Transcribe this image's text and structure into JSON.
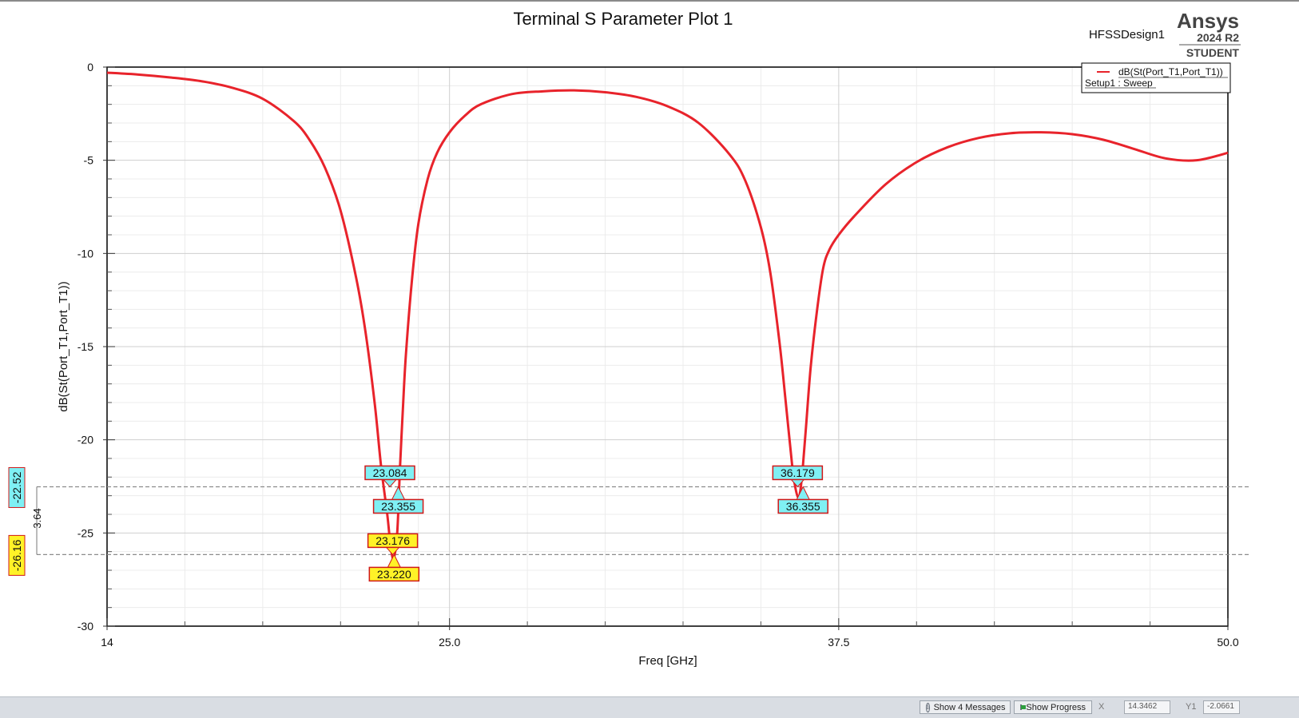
{
  "header": {
    "title": "Terminal S Parameter Plot 1",
    "design_name": "HFSSDesign1",
    "brand": "Ansys",
    "version": "2024 R2",
    "edition": "STUDENT"
  },
  "legend": {
    "trace_label": "dB(St(Port_T1,Port_T1))",
    "setup_label": "Setup1 : Sweep"
  },
  "colors": {
    "trace": "#e8232b",
    "marker_cyan": "#7ff0f4",
    "marker_yellow": "#fff227",
    "marker_border": "#d01818",
    "grid_major": "#cfcfcf",
    "grid_minor": "#ececec"
  },
  "chart_data": {
    "type": "line",
    "title": "Terminal S Parameter Plot 1",
    "xlabel": "Freq [GHz]",
    "ylabel": "dB(St(Port_T1,Port_T1))",
    "xlim": [
      14,
      50
    ],
    "ylim": [
      -30,
      0
    ],
    "x_ticks": [
      14,
      25,
      37.5,
      50
    ],
    "x_tick_labels": [
      "14",
      "25.0",
      "37.5",
      "50.0"
    ],
    "y_ticks": [
      0,
      -5,
      -10,
      -15,
      -20,
      -25,
      -30
    ],
    "y_tick_labels": [
      "0",
      "-5",
      "-10",
      "-15",
      "-20",
      "-25",
      "-30"
    ],
    "grid": true,
    "legend_position": "top-right",
    "series": [
      {
        "name": "dB(St(Port_T1,Port_T1))",
        "x": [
          14,
          15,
          16,
          17,
          18,
          19,
          20,
          20.5,
          21,
          21.5,
          22,
          22.3,
          22.6,
          22.8,
          23,
          23.1,
          23.2,
          23.3,
          23.35,
          23.4,
          23.5,
          23.6,
          23.8,
          24,
          24.3,
          24.6,
          25,
          25.5,
          26,
          27,
          28,
          29,
          30,
          31,
          32,
          33,
          34,
          34.5,
          35,
          35.3,
          35.6,
          35.8,
          36,
          36.1,
          36.2,
          36.27,
          36.35,
          36.45,
          36.6,
          36.8,
          37,
          37.2,
          37.5,
          38,
          39,
          40,
          41,
          42,
          43,
          44,
          45,
          46,
          47,
          48,
          49,
          50
        ],
        "y": [
          -0.3,
          -0.4,
          -0.55,
          -0.75,
          -1.1,
          -1.7,
          -2.9,
          -3.9,
          -5.4,
          -7.7,
          -11.3,
          -14.2,
          -18.1,
          -21.4,
          -24.0,
          -25.6,
          -26.4,
          -25.4,
          -24.0,
          -21.8,
          -18.4,
          -15.4,
          -11.3,
          -8.4,
          -6.0,
          -4.6,
          -3.5,
          -2.6,
          -2.0,
          -1.45,
          -1.3,
          -1.25,
          -1.35,
          -1.6,
          -2.1,
          -3.0,
          -4.7,
          -6.1,
          -8.6,
          -11.0,
          -14.8,
          -18.0,
          -21.3,
          -22.5,
          -23.1,
          -22.7,
          -21.4,
          -19.3,
          -16.1,
          -13.1,
          -10.8,
          -9.8,
          -9.0,
          -8.0,
          -6.3,
          -5.1,
          -4.3,
          -3.8,
          -3.55,
          -3.5,
          -3.6,
          -3.9,
          -4.4,
          -4.9,
          -5.0,
          -4.6
        ]
      }
    ],
    "markers": [
      {
        "label": "23.084",
        "x": 23.084,
        "y": -22.52,
        "color": "cyan",
        "side": "above"
      },
      {
        "label": "23.355",
        "x": 23.355,
        "y": -22.52,
        "color": "cyan",
        "side": "below"
      },
      {
        "label": "23.176",
        "x": 23.176,
        "y": -26.16,
        "color": "yellow",
        "side": "above"
      },
      {
        "label": "23.220",
        "x": 23.22,
        "y": -26.16,
        "color": "yellow",
        "side": "below"
      },
      {
        "label": "36.179",
        "x": 36.179,
        "y": -22.52,
        "color": "cyan",
        "side": "above"
      },
      {
        "label": "36.355",
        "x": 36.355,
        "y": -22.52,
        "color": "cyan",
        "side": "below"
      }
    ],
    "y_cursors": [
      {
        "label": "-22.52",
        "y": -22.52,
        "color": "cyan"
      },
      {
        "label": "-26.16",
        "y": -26.16,
        "color": "yellow"
      }
    ],
    "cursor_delta_label": "3.64"
  },
  "status_bar": {
    "messages_label": "Show 4 Messages",
    "progress_label": "Show Progress",
    "x_label": "X",
    "x_value": "14.3462",
    "y_label": "Y1",
    "y_value": "-2.0661"
  }
}
